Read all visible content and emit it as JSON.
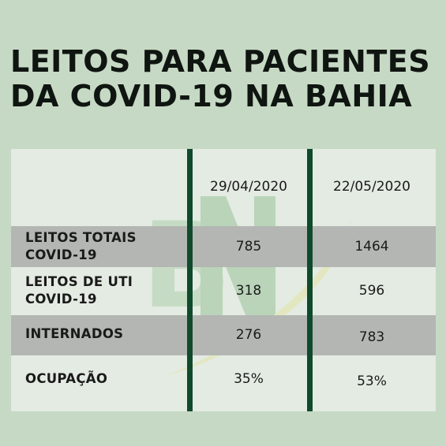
{
  "title": {
    "line1": "LEITOS PARA PACIENTES",
    "line2": "DA COVID-19 NA BAHIA"
  },
  "watermark": {
    "text": "BN",
    "icon": "bn-logo-watermark"
  },
  "table": {
    "headers": [
      "29/04/2020",
      "22/05/2020"
    ],
    "rows": [
      {
        "label_lines": [
          "LEITOS TOTAIS",
          "COVID-19"
        ],
        "values": [
          "785",
          "1464"
        ]
      },
      {
        "label_lines": [
          "LEITOS DE UTI",
          "COVID-19"
        ],
        "values": [
          "318",
          "596"
        ]
      },
      {
        "label_lines": [
          "INTERNADOS"
        ],
        "values": [
          "276",
          "783"
        ]
      },
      {
        "label_lines": [
          "OCUPAÇÃO"
        ],
        "values": [
          "35%",
          "53%"
        ]
      }
    ]
  },
  "colors": {
    "background": "#c6d9c4",
    "table_background": "#e3ebe2",
    "row_highlight": "#b4b6b3",
    "divider": "#0f4a2c"
  }
}
